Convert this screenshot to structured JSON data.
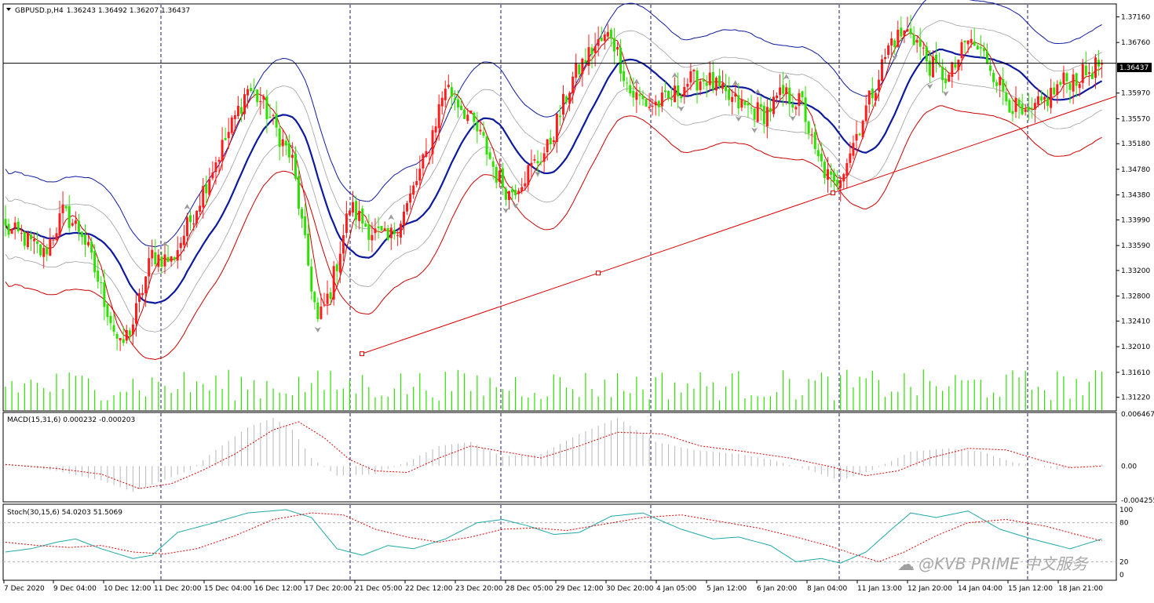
{
  "header": {
    "symbol": "GBPUSD.p,H4",
    "ohlc": "1.36243 1.36492 1.36207 1.36437",
    "menu_icon": "triangle-down-icon"
  },
  "price_tag": "1.36437",
  "price_ticks": [
    "1.37160",
    "1.36760",
    "1.35970",
    "1.35570",
    "1.35180",
    "1.34780",
    "1.34380",
    "1.33990",
    "1.33590",
    "1.33200",
    "1.32800",
    "1.32410",
    "1.32010",
    "1.31610",
    "1.31220"
  ],
  "macd_header": "MACD(15,31,6) 0.000232 -0.000203",
  "macd_ticks": [
    "0.006467",
    "0.00",
    "-0.004255"
  ],
  "stoch_header": "Stoch(30,15,6) 54.0203 51.5069",
  "stoch_ticks": [
    "100",
    "80",
    "20",
    "0"
  ],
  "time_labels": [
    "7 Dec 2020",
    "9 Dec 04:00",
    "10 Dec 12:00",
    "11 Dec 20:00",
    "15 Dec 04:00",
    "16 Dec 12:00",
    "17 Dec 20:00",
    "21 Dec 05:00",
    "22 Dec 12:00",
    "23 Dec 20:00",
    "28 Dec 05:00",
    "29 Dec 12:00",
    "30 Dec 20:00",
    "4 Jan 05:00",
    "5 Jan 12:00",
    "6 Jan 20:00",
    "8 Jan 04:00",
    "11 Jan 13:00",
    "12 Jan 20:00",
    "14 Jan 04:00",
    "15 Jan 12:00",
    "18 Jan 21:00"
  ],
  "watermark": "@KVB PRIME 中文服务",
  "colors": {
    "bull": "#ff1c1c",
    "bear": "#2ee000",
    "ma_main": "#0d1aa0",
    "band_outer_upper": "#0d1aa0",
    "band_outer_lower": "#cc0000",
    "band_inner": "#a0a0a0",
    "fast_ma": "#cc0000",
    "trendline": "#dd0000",
    "macd_signal": "#dd0000",
    "stoch_main": "#20a8a8",
    "stoch_signal": "#dd0000",
    "fractal": "#9a9a9a"
  },
  "chart_data": {
    "type": "candlestick",
    "symbol": "GBPUSD.p",
    "timeframe": "H4",
    "last": {
      "open": 1.36243,
      "high": 1.36492,
      "low": 1.36207,
      "close": 1.36437
    },
    "ylim": [
      1.3102,
      1.3735
    ],
    "close_path": [
      [
        0,
        1.3385
      ],
      [
        6,
        1.337
      ],
      [
        12,
        1.3345
      ],
      [
        18,
        1.341
      ],
      [
        24,
        1.338
      ],
      [
        30,
        1.329
      ],
      [
        36,
        1.3198
      ],
      [
        40,
        1.3238
      ],
      [
        46,
        1.3345
      ],
      [
        52,
        1.3335
      ],
      [
        58,
        1.3398
      ],
      [
        64,
        1.347
      ],
      [
        70,
        1.3535
      ],
      [
        76,
        1.3605
      ],
      [
        80,
        1.3585
      ],
      [
        86,
        1.353
      ],
      [
        90,
        1.349
      ],
      [
        94,
        1.3358
      ],
      [
        98,
        1.3238
      ],
      [
        102,
        1.329
      ],
      [
        108,
        1.342
      ],
      [
        114,
        1.3385
      ],
      [
        120,
        1.3365
      ],
      [
        126,
        1.342
      ],
      [
        132,
        1.35
      ],
      [
        138,
        1.361
      ],
      [
        144,
        1.357
      ],
      [
        150,
        1.352
      ],
      [
        154,
        1.347
      ],
      [
        158,
        1.344
      ],
      [
        164,
        1.3475
      ],
      [
        170,
        1.351
      ],
      [
        178,
        1.362
      ],
      [
        184,
        1.3665
      ],
      [
        190,
        1.369
      ],
      [
        196,
        1.3598
      ],
      [
        202,
        1.3578
      ],
      [
        208,
        1.3585
      ],
      [
        214,
        1.3615
      ],
      [
        220,
        1.362
      ],
      [
        226,
        1.359
      ],
      [
        232,
        1.3575
      ],
      [
        238,
        1.3565
      ],
      [
        244,
        1.3595
      ],
      [
        250,
        1.358
      ],
      [
        254,
        1.35
      ],
      [
        260,
        1.345
      ],
      [
        266,
        1.352
      ],
      [
        272,
        1.36
      ],
      [
        278,
        1.368
      ],
      [
        284,
        1.3695
      ],
      [
        290,
        1.364
      ],
      [
        296,
        1.362
      ],
      [
        302,
        1.368
      ],
      [
        308,
        1.365
      ],
      [
        314,
        1.359
      ],
      [
        320,
        1.3555
      ],
      [
        326,
        1.3585
      ],
      [
        332,
        1.3615
      ],
      [
        338,
        1.3625
      ],
      [
        344,
        1.3644
      ]
    ],
    "trendline": {
      "from": {
        "time": "21 Dec 05:00",
        "price": 1.319
      },
      "to": {
        "time": "18 Jan 21:00",
        "price": 1.3583
      }
    },
    "macd": {
      "params": [
        15,
        31,
        6
      ],
      "values": [
        0.000232,
        -0.000203
      ],
      "ylim": [
        -0.004255,
        0.006467
      ],
      "histogram_path": [
        [
          0,
          0.0002
        ],
        [
          16,
          -0.0006
        ],
        [
          30,
          -0.0018
        ],
        [
          40,
          -0.0032
        ],
        [
          48,
          -0.002
        ],
        [
          58,
          -0.0005
        ],
        [
          66,
          0.002
        ],
        [
          76,
          0.0048
        ],
        [
          84,
          0.006
        ],
        [
          90,
          0.0045
        ],
        [
          96,
          0.001
        ],
        [
          104,
          -0.0012
        ],
        [
          116,
          -0.001
        ],
        [
          126,
          0.0005
        ],
        [
          136,
          0.0025
        ],
        [
          146,
          0.003
        ],
        [
          156,
          0.0012
        ],
        [
          168,
          0.0015
        ],
        [
          180,
          0.004
        ],
        [
          192,
          0.006
        ],
        [
          204,
          0.003
        ],
        [
          216,
          0.002
        ],
        [
          230,
          0.0015
        ],
        [
          240,
          0.0008
        ],
        [
          252,
          -0.0005
        ],
        [
          262,
          -0.0018
        ],
        [
          272,
          -0.0005
        ],
        [
          284,
          0.0018
        ],
        [
          296,
          0.0022
        ],
        [
          306,
          0.0018
        ],
        [
          316,
          0.0005
        ],
        [
          330,
          -0.0004
        ],
        [
          344,
          0.0002
        ]
      ],
      "signal_path": [
        [
          0,
          0.0002
        ],
        [
          16,
          -0.0003
        ],
        [
          30,
          -0.001
        ],
        [
          42,
          -0.0028
        ],
        [
          52,
          -0.0022
        ],
        [
          62,
          -0.0005
        ],
        [
          72,
          0.0015
        ],
        [
          84,
          0.0045
        ],
        [
          92,
          0.0055
        ],
        [
          100,
          0.0035
        ],
        [
          108,
          0.0008
        ],
        [
          116,
          -0.0006
        ],
        [
          126,
          -0.0008
        ],
        [
          136,
          0.001
        ],
        [
          146,
          0.0025
        ],
        [
          156,
          0.0018
        ],
        [
          168,
          0.001
        ],
        [
          180,
          0.0025
        ],
        [
          192,
          0.0042
        ],
        [
          206,
          0.004
        ],
        [
          218,
          0.0025
        ],
        [
          232,
          0.0018
        ],
        [
          246,
          0.001
        ],
        [
          258,
          0.0
        ],
        [
          270,
          -0.0012
        ],
        [
          280,
          -0.0006
        ],
        [
          290,
          0.001
        ],
        [
          302,
          0.0022
        ],
        [
          314,
          0.002
        ],
        [
          324,
          0.0008
        ],
        [
          334,
          -0.0002
        ],
        [
          344,
          0.0
        ]
      ]
    },
    "stochastic": {
      "params": [
        30,
        15,
        6
      ],
      "values": [
        54.0203,
        51.5069
      ],
      "ylim": [
        0,
        100
      ],
      "levels": [
        80,
        20
      ],
      "main_path": [
        [
          0,
          35
        ],
        [
          8,
          40
        ],
        [
          16,
          50
        ],
        [
          22,
          55
        ],
        [
          30,
          40
        ],
        [
          40,
          25
        ],
        [
          46,
          30
        ],
        [
          54,
          65
        ],
        [
          64,
          78
        ],
        [
          76,
          95
        ],
        [
          88,
          100
        ],
        [
          96,
          88
        ],
        [
          104,
          40
        ],
        [
          112,
          30
        ],
        [
          120,
          45
        ],
        [
          128,
          40
        ],
        [
          138,
          55
        ],
        [
          148,
          80
        ],
        [
          156,
          85
        ],
        [
          164,
          75
        ],
        [
          172,
          62
        ],
        [
          180,
          65
        ],
        [
          190,
          90
        ],
        [
          200,
          95
        ],
        [
          212,
          70
        ],
        [
          222,
          55
        ],
        [
          230,
          58
        ],
        [
          240,
          45
        ],
        [
          248,
          20
        ],
        [
          256,
          25
        ],
        [
          262,
          18
        ],
        [
          270,
          35
        ],
        [
          278,
          70
        ],
        [
          284,
          95
        ],
        [
          292,
          88
        ],
        [
          302,
          98
        ],
        [
          312,
          70
        ],
        [
          322,
          55
        ],
        [
          334,
          40
        ],
        [
          344,
          55
        ]
      ],
      "signal_path": [
        [
          0,
          50
        ],
        [
          10,
          45
        ],
        [
          20,
          42
        ],
        [
          30,
          45
        ],
        [
          40,
          35
        ],
        [
          50,
          32
        ],
        [
          60,
          40
        ],
        [
          72,
          60
        ],
        [
          84,
          85
        ],
        [
          96,
          95
        ],
        [
          106,
          92
        ],
        [
          116,
          70
        ],
        [
          126,
          58
        ],
        [
          136,
          50
        ],
        [
          146,
          58
        ],
        [
          156,
          70
        ],
        [
          166,
          72
        ],
        [
          176,
          68
        ],
        [
          188,
          78
        ],
        [
          200,
          88
        ],
        [
          212,
          92
        ],
        [
          224,
          82
        ],
        [
          236,
          72
        ],
        [
          248,
          58
        ],
        [
          258,
          45
        ],
        [
          266,
          32
        ],
        [
          274,
          20
        ],
        [
          282,
          35
        ],
        [
          292,
          60
        ],
        [
          302,
          80
        ],
        [
          314,
          85
        ],
        [
          326,
          75
        ],
        [
          336,
          62
        ],
        [
          344,
          52
        ]
      ]
    }
  }
}
